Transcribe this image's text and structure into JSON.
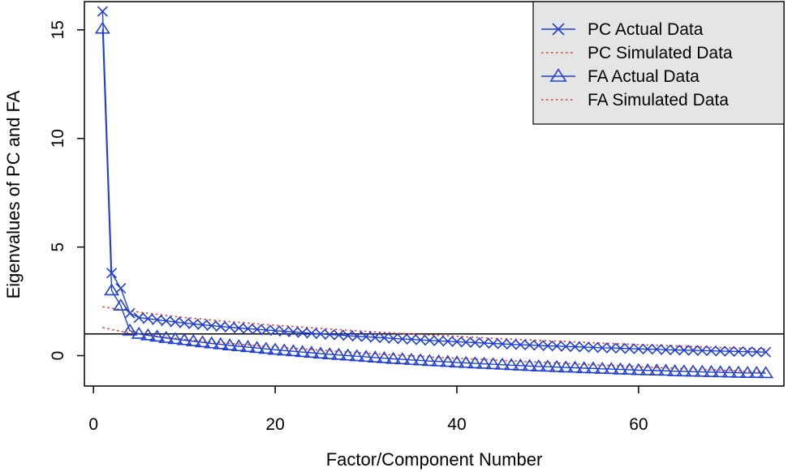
{
  "chart_data": {
    "type": "line",
    "xlabel": "Factor/Component Number",
    "ylabel": "Eigenvalues of PC and FA",
    "xlim": [
      -1,
      76
    ],
    "ylim": [
      -1.4,
      16.3
    ],
    "x_ticks": [
      0,
      20,
      40,
      60
    ],
    "y_ticks": [
      0,
      5,
      10,
      15
    ],
    "reference_line": 1,
    "grid": false,
    "legend_position": "top-right",
    "colors": {
      "actual": "#1f3fd6",
      "simulated": "#e0402e",
      "legend_bg": "#e5e5e5"
    },
    "series": [
      {
        "name": "PC Actual Data",
        "style": "line-x",
        "x": [
          1,
          2,
          3,
          4,
          5,
          6,
          7,
          8,
          9,
          10,
          11,
          12,
          13,
          14,
          15,
          16,
          17,
          18,
          19,
          20,
          21,
          22,
          23,
          24,
          25,
          26,
          27,
          28,
          29,
          30,
          31,
          32,
          33,
          34,
          35,
          36,
          37,
          38,
          39,
          40,
          41,
          42,
          43,
          44,
          45,
          46,
          47,
          48,
          49,
          50,
          51,
          52,
          53,
          54,
          55,
          56,
          57,
          58,
          59,
          60,
          61,
          62,
          63,
          64,
          65,
          66,
          67,
          68,
          69,
          70,
          71,
          72,
          73,
          74
        ],
        "values": [
          15.85,
          3.8,
          3.1,
          1.95,
          1.75,
          1.7,
          1.65,
          1.6,
          1.55,
          1.5,
          1.46,
          1.42,
          1.38,
          1.34,
          1.31,
          1.27,
          1.24,
          1.21,
          1.18,
          1.15,
          1.12,
          1.09,
          1.06,
          1.03,
          1.0,
          0.97,
          0.95,
          0.92,
          0.89,
          0.87,
          0.84,
          0.82,
          0.79,
          0.77,
          0.75,
          0.72,
          0.7,
          0.68,
          0.66,
          0.64,
          0.62,
          0.6,
          0.58,
          0.56,
          0.54,
          0.52,
          0.5,
          0.49,
          0.47,
          0.45,
          0.44,
          0.42,
          0.41,
          0.39,
          0.38,
          0.36,
          0.35,
          0.34,
          0.32,
          0.31,
          0.3,
          0.29,
          0.27,
          0.26,
          0.25,
          0.24,
          0.23,
          0.22,
          0.21,
          0.2,
          0.19,
          0.18,
          0.17,
          0.16
        ]
      },
      {
        "name": "PC Simulated Data",
        "style": "dotted",
        "x": [
          1,
          2,
          3,
          4,
          5,
          6,
          7,
          8,
          9,
          10,
          11,
          12,
          13,
          14,
          15,
          16,
          17,
          18,
          19,
          20,
          21,
          22,
          23,
          24,
          25,
          26,
          27,
          28,
          29,
          30,
          31,
          32,
          33,
          34,
          35,
          36,
          37,
          38,
          39,
          40,
          41,
          42,
          43,
          44,
          45,
          46,
          47,
          48,
          49,
          50,
          51,
          52,
          53,
          54,
          55,
          56,
          57,
          58,
          59,
          60,
          61,
          62,
          63,
          64,
          65,
          66,
          67,
          68,
          69,
          70,
          71,
          72,
          73,
          74
        ],
        "values": [
          2.25,
          2.18,
          2.12,
          2.06,
          2.0,
          1.95,
          1.9,
          1.85,
          1.8,
          1.76,
          1.72,
          1.68,
          1.64,
          1.6,
          1.57,
          1.53,
          1.5,
          1.46,
          1.43,
          1.4,
          1.37,
          1.34,
          1.31,
          1.28,
          1.25,
          1.22,
          1.2,
          1.17,
          1.14,
          1.12,
          1.09,
          1.07,
          1.04,
          1.02,
          1.0,
          0.97,
          0.95,
          0.93,
          0.91,
          0.89,
          0.86,
          0.84,
          0.82,
          0.8,
          0.78,
          0.76,
          0.74,
          0.72,
          0.7,
          0.68,
          0.67,
          0.65,
          0.63,
          0.61,
          0.59,
          0.58,
          0.56,
          0.54,
          0.53,
          0.51,
          0.49,
          0.48,
          0.46,
          0.45,
          0.43,
          0.42,
          0.4,
          0.39,
          0.37,
          0.36,
          0.34,
          0.33,
          0.31,
          0.3
        ]
      },
      {
        "name": "FA Actual Data",
        "style": "line-triangle",
        "x": [
          1,
          2,
          3,
          4,
          5,
          6,
          7,
          8,
          9,
          10,
          11,
          12,
          13,
          14,
          15,
          16,
          17,
          18,
          19,
          20,
          21,
          22,
          23,
          24,
          25,
          26,
          27,
          28,
          29,
          30,
          31,
          32,
          33,
          34,
          35,
          36,
          37,
          38,
          39,
          40,
          41,
          42,
          43,
          44,
          45,
          46,
          47,
          48,
          49,
          50,
          51,
          52,
          53,
          54,
          55,
          56,
          57,
          58,
          59,
          60,
          61,
          62,
          63,
          64,
          65,
          66,
          67,
          68,
          69,
          70,
          71,
          72,
          73,
          74
        ],
        "values": [
          15.05,
          3.0,
          2.3,
          1.15,
          1.0,
          0.93,
          0.87,
          0.81,
          0.76,
          0.71,
          0.66,
          0.61,
          0.56,
          0.52,
          0.47,
          0.43,
          0.39,
          0.35,
          0.31,
          0.27,
          0.23,
          0.2,
          0.16,
          0.13,
          0.09,
          0.06,
          0.03,
          0.0,
          -0.03,
          -0.06,
          -0.09,
          -0.12,
          -0.15,
          -0.17,
          -0.2,
          -0.22,
          -0.25,
          -0.27,
          -0.29,
          -0.32,
          -0.34,
          -0.36,
          -0.38,
          -0.4,
          -0.42,
          -0.44,
          -0.46,
          -0.48,
          -0.5,
          -0.51,
          -0.53,
          -0.55,
          -0.56,
          -0.58,
          -0.59,
          -0.61,
          -0.62,
          -0.64,
          -0.65,
          -0.67,
          -0.68,
          -0.69,
          -0.7,
          -0.72,
          -0.73,
          -0.74,
          -0.75,
          -0.76,
          -0.77,
          -0.78,
          -0.79,
          -0.8,
          -0.8,
          -0.81
        ]
      },
      {
        "name": "FA Simulated Data",
        "style": "dotted",
        "x": [
          1,
          2,
          3,
          4,
          5,
          6,
          7,
          8,
          9,
          10,
          11,
          12,
          13,
          14,
          15,
          16,
          17,
          18,
          19,
          20,
          21,
          22,
          23,
          24,
          25,
          26,
          27,
          28,
          29,
          30,
          31,
          32,
          33,
          34,
          35,
          36,
          37,
          38,
          39,
          40,
          41,
          42,
          43,
          44,
          45,
          46,
          47,
          48,
          49,
          50,
          51,
          52,
          53,
          54,
          55,
          56,
          57,
          58,
          59,
          60,
          61,
          62,
          63,
          64,
          65,
          66,
          67,
          68,
          69,
          70,
          71,
          72,
          73,
          74
        ],
        "values": [
          1.3,
          1.2,
          1.12,
          1.05,
          0.99,
          0.94,
          0.89,
          0.84,
          0.8,
          0.75,
          0.71,
          0.67,
          0.63,
          0.6,
          0.56,
          0.53,
          0.5,
          0.46,
          0.43,
          0.4,
          0.37,
          0.34,
          0.31,
          0.28,
          0.25,
          0.22,
          0.19,
          0.17,
          0.14,
          0.11,
          0.09,
          0.06,
          0.04,
          0.01,
          -0.01,
          -0.03,
          -0.06,
          -0.08,
          -0.1,
          -0.12,
          -0.14,
          -0.16,
          -0.18,
          -0.2,
          -0.22,
          -0.24,
          -0.26,
          -0.28,
          -0.3,
          -0.32,
          -0.34,
          -0.36,
          -0.38,
          -0.4,
          -0.42,
          -0.44,
          -0.45,
          -0.47,
          -0.49,
          -0.51,
          -0.53,
          -0.55,
          -0.56,
          -0.58,
          -0.6,
          -0.62,
          -0.63,
          -0.65,
          -0.67,
          -0.68,
          -0.7,
          -0.72,
          -0.73,
          -0.75
        ]
      }
    ]
  }
}
